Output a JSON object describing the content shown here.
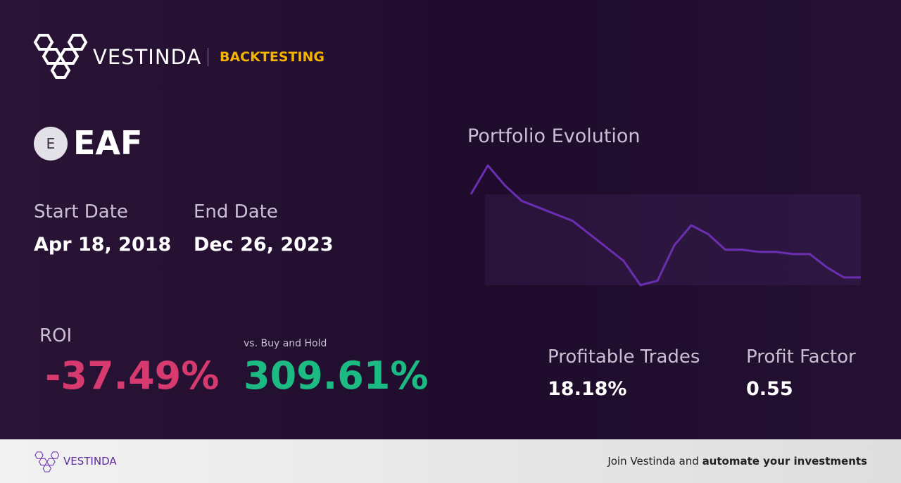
{
  "header": {
    "brand": "VESTINDA",
    "section": "BACKTESTING"
  },
  "asset": {
    "icon_letter": "E",
    "symbol": "EAF"
  },
  "dates": {
    "start_label": "Start Date",
    "start": "Apr 18, 2018",
    "end_label": "End Date",
    "end": "Dec 26, 2023"
  },
  "metrics": {
    "roi_label": "ROI",
    "roi": "-37.49%",
    "buy_hold_label": "vs. Buy and Hold",
    "buy_hold": "309.61%",
    "profitable_label": "Profitable Trades",
    "profitable": "18.18%",
    "factor_label": "Profit Factor",
    "factor": "0.55"
  },
  "chart_data": {
    "type": "line",
    "title": "Portfolio Evolution",
    "color": "#6a2fb0",
    "values": [
      100,
      113,
      104,
      97,
      94,
      91,
      88,
      82,
      76,
      70,
      59,
      61,
      77,
      86,
      82,
      75,
      75,
      74,
      74,
      73,
      73,
      67,
      62.5,
      62.5
    ]
  },
  "footer": {
    "brand": "VESTINDA",
    "cta_plain": "Join Vestinda and",
    "cta_bold": "automate your investments"
  }
}
